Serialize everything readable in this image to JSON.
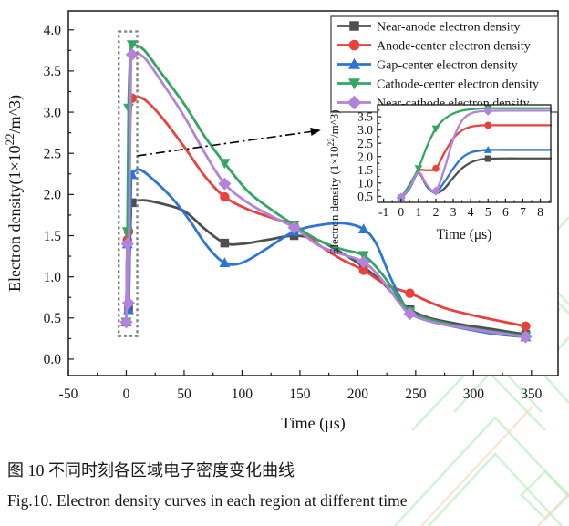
{
  "figure": {
    "caption_zh": "图 10 不同时刻各区域电子密度变化曲线",
    "caption_en": "Fig.10. Electron density curves in each region at different time"
  },
  "colors": {
    "axis": "#1a1a1a",
    "near_anode": "#4f4f4f",
    "anode_center": "#e9423e",
    "gap_center": "#2a74da",
    "cathode_center": "#34a663",
    "near_cathode": "#b283da",
    "dashed_box": "#808080",
    "arrow": "#000000",
    "legend_border": "#3a3a3a",
    "watermark_green": "#bdeec4",
    "watermark_peach": "#f6d9c4"
  },
  "chart_data": [
    {
      "id": "main",
      "type": "line",
      "xlabel": "Time (μs)",
      "ylabel_parts": [
        "Electron density(1×10",
        "22",
        "/m^3)"
      ],
      "xlim": [
        -50,
        373
      ],
      "ylim": [
        -0.2,
        4.23
      ],
      "xticks": [
        -50,
        0,
        50,
        100,
        150,
        200,
        250,
        300,
        350
      ],
      "xminor_step": 25,
      "yticks": [
        0.0,
        0.5,
        1.0,
        1.5,
        2.0,
        2.5,
        3.0,
        3.5,
        4.0
      ],
      "yminor_step": 0.25,
      "x_tick_decimals": 0,
      "y_tick_decimals": 1,
      "grid": false,
      "legend_position": "top-right",
      "series": [
        {
          "key": "near_anode",
          "label": "Near-anode electron density",
          "marker": "square",
          "color_key": "near_anode",
          "marker_ts": [
            0,
            1,
            2,
            5,
            85,
            145,
            205,
            245,
            345
          ],
          "points": [
            [
              0,
              0.45
            ],
            [
              1,
              1.4
            ],
            [
              2,
              0.62
            ],
            [
              3,
              1.3
            ],
            [
              4,
              1.75
            ],
            [
              5,
              1.9
            ],
            [
              15,
              1.93
            ],
            [
              30,
              1.89
            ],
            [
              50,
              1.8
            ],
            [
              68,
              1.58
            ],
            [
              85,
              1.41
            ],
            [
              100,
              1.4
            ],
            [
              122,
              1.45
            ],
            [
              145,
              1.5
            ],
            [
              165,
              1.45
            ],
            [
              185,
              1.3
            ],
            [
              205,
              1.12
            ],
            [
              222,
              0.92
            ],
            [
              235,
              0.72
            ],
            [
              245,
              0.6
            ],
            [
              262,
              0.5
            ],
            [
              290,
              0.42
            ],
            [
              318,
              0.36
            ],
            [
              345,
              0.3
            ]
          ]
        },
        {
          "key": "anode_center",
          "label": "Anode-center electron density",
          "marker": "circle",
          "color_key": "anode_center",
          "marker_ts": [
            0,
            1,
            2,
            5,
            85,
            145,
            205,
            245,
            345
          ],
          "points": [
            [
              0,
              0.45
            ],
            [
              1,
              1.45
            ],
            [
              2,
              1.55
            ],
            [
              3,
              2.6
            ],
            [
              4,
              3.05
            ],
            [
              5,
              3.17
            ],
            [
              15,
              3.16
            ],
            [
              30,
              2.95
            ],
            [
              50,
              2.58
            ],
            [
              68,
              2.22
            ],
            [
              85,
              1.97
            ],
            [
              105,
              1.82
            ],
            [
              125,
              1.72
            ],
            [
              145,
              1.62
            ],
            [
              165,
              1.4
            ],
            [
              185,
              1.22
            ],
            [
              205,
              1.08
            ],
            [
              225,
              0.9
            ],
            [
              245,
              0.8
            ],
            [
              275,
              0.62
            ],
            [
              310,
              0.5
            ],
            [
              345,
              0.4
            ]
          ]
        },
        {
          "key": "gap_center",
          "label": "Gap-center electron density",
          "marker": "triangle-up",
          "color_key": "gap_center",
          "marker_ts": [
            0,
            1,
            2,
            5,
            85,
            145,
            205,
            245,
            345
          ],
          "points": [
            [
              0,
              0.45
            ],
            [
              1,
              1.4
            ],
            [
              2,
              0.6
            ],
            [
              3,
              1.35
            ],
            [
              4,
              2.05
            ],
            [
              5,
              2.24
            ],
            [
              12,
              2.3
            ],
            [
              25,
              2.16
            ],
            [
              40,
              1.95
            ],
            [
              55,
              1.68
            ],
            [
              70,
              1.37
            ],
            [
              85,
              1.17
            ],
            [
              100,
              1.17
            ],
            [
              120,
              1.33
            ],
            [
              145,
              1.55
            ],
            [
              168,
              1.63
            ],
            [
              188,
              1.65
            ],
            [
              205,
              1.58
            ],
            [
              216,
              1.4
            ],
            [
              228,
              1.0
            ],
            [
              240,
              0.66
            ],
            [
              248,
              0.54
            ],
            [
              265,
              0.45
            ],
            [
              300,
              0.35
            ],
            [
              322,
              0.3
            ],
            [
              345,
              0.27
            ]
          ]
        },
        {
          "key": "cathode_center",
          "label": "Cathode-center electron density",
          "marker": "triangle-down",
          "color_key": "cathode_center",
          "marker_ts": [
            0,
            1,
            2,
            5,
            85,
            145,
            205,
            245,
            345
          ],
          "points": [
            [
              0,
              0.45
            ],
            [
              1,
              1.55
            ],
            [
              2,
              3.05
            ],
            [
              3,
              3.55
            ],
            [
              4,
              3.78
            ],
            [
              5,
              3.82
            ],
            [
              15,
              3.76
            ],
            [
              30,
              3.48
            ],
            [
              50,
              3.1
            ],
            [
              68,
              2.7
            ],
            [
              85,
              2.38
            ],
            [
              105,
              2.04
            ],
            [
              125,
              1.82
            ],
            [
              145,
              1.63
            ],
            [
              165,
              1.45
            ],
            [
              185,
              1.34
            ],
            [
              205,
              1.26
            ],
            [
              220,
              1.05
            ],
            [
              235,
              0.76
            ],
            [
              245,
              0.58
            ],
            [
              265,
              0.47
            ],
            [
              300,
              0.37
            ],
            [
              345,
              0.28
            ]
          ]
        },
        {
          "key": "near_cathode",
          "label": "Near-cathode electron density",
          "marker": "diamond",
          "color_key": "near_cathode",
          "marker_ts": [
            0,
            1,
            2,
            5,
            85,
            145,
            205,
            245,
            345
          ],
          "points": [
            [
              0,
              0.45
            ],
            [
              1,
              1.4
            ],
            [
              2,
              0.68
            ],
            [
              3,
              2.2
            ],
            [
              4,
              3.5
            ],
            [
              5,
              3.7
            ],
            [
              15,
              3.67
            ],
            [
              30,
              3.38
            ],
            [
              50,
              2.95
            ],
            [
              68,
              2.5
            ],
            [
              85,
              2.13
            ],
            [
              105,
              1.9
            ],
            [
              125,
              1.74
            ],
            [
              145,
              1.6
            ],
            [
              165,
              1.39
            ],
            [
              185,
              1.28
            ],
            [
              205,
              1.18
            ],
            [
              220,
              0.98
            ],
            [
              235,
              0.7
            ],
            [
              245,
              0.55
            ],
            [
              265,
              0.45
            ],
            [
              300,
              0.36
            ],
            [
              345,
              0.27
            ]
          ]
        }
      ],
      "annotations": {
        "dashed_box": {
          "x0": -6.5,
          "x1": 9.5,
          "y0": 0.28,
          "y1": 3.98
        },
        "arrow": {
          "x0": 9.5,
          "y0": 2.47,
          "x1": 168,
          "y1": 2.78
        }
      }
    },
    {
      "id": "inset",
      "type": "line",
      "xlabel": "Time (μs)",
      "ylabel_parts": [
        "Electron density (1×10",
        "22",
        "/m^3)"
      ],
      "xlim": [
        -1.35,
        8.6
      ],
      "ylim": [
        0.27,
        3.95
      ],
      "xticks": [
        -1,
        0,
        1,
        2,
        3,
        4,
        5,
        6,
        7,
        8
      ],
      "xminor_step": 0.5,
      "yticks": [
        0.5,
        1.0,
        1.5,
        2.0,
        2.5,
        3.0,
        3.5
      ],
      "yminor_step": 0.25,
      "x_tick_decimals": 0,
      "y_tick_decimals": 1,
      "grid": false,
      "legend_position": "none",
      "series": [
        {
          "key": "near_anode",
          "label": "Near-anode electron density",
          "marker": "square",
          "color_key": "near_anode",
          "marker_ts": [
            0,
            5
          ],
          "points": [
            [
              0,
              0.43
            ],
            [
              0.5,
              0.8
            ],
            [
              1,
              1.38
            ],
            [
              1.5,
              0.85
            ],
            [
              2,
              0.62
            ],
            [
              2.5,
              0.8
            ],
            [
              3,
              1.2
            ],
            [
              3.5,
              1.55
            ],
            [
              4,
              1.77
            ],
            [
              4.5,
              1.88
            ],
            [
              5,
              1.92
            ],
            [
              6,
              1.93
            ],
            [
              7,
              1.93
            ],
            [
              8,
              1.93
            ],
            [
              8.6,
              1.93
            ]
          ]
        },
        {
          "key": "anode_center",
          "label": "Anode-center electron density",
          "marker": "circle",
          "color_key": "anode_center",
          "marker_ts": [
            0,
            2,
            5
          ],
          "points": [
            [
              0,
              0.44
            ],
            [
              0.5,
              0.85
            ],
            [
              1,
              1.45
            ],
            [
              1.5,
              1.48
            ],
            [
              2,
              1.55
            ],
            [
              2.5,
              2.15
            ],
            [
              3,
              2.68
            ],
            [
              3.5,
              2.98
            ],
            [
              4,
              3.12
            ],
            [
              4.5,
              3.17
            ],
            [
              5,
              3.18
            ],
            [
              6,
              3.18
            ],
            [
              7,
              3.18
            ],
            [
              8,
              3.18
            ],
            [
              8.6,
              3.18
            ]
          ]
        },
        {
          "key": "gap_center",
          "label": "Gap-center electron density",
          "marker": "triangle-up",
          "color_key": "gap_center",
          "marker_ts": [
            0,
            5
          ],
          "points": [
            [
              0,
              0.43
            ],
            [
              0.5,
              0.8
            ],
            [
              1,
              1.4
            ],
            [
              1.5,
              0.88
            ],
            [
              2,
              0.65
            ],
            [
              2.5,
              1.05
            ],
            [
              3,
              1.55
            ],
            [
              3.5,
              1.95
            ],
            [
              4,
              2.15
            ],
            [
              4.5,
              2.22
            ],
            [
              5,
              2.25
            ],
            [
              6,
              2.25
            ],
            [
              7,
              2.25
            ],
            [
              8,
              2.25
            ],
            [
              8.6,
              2.25
            ]
          ]
        },
        {
          "key": "cathode_center",
          "label": "Cathode-center electron density",
          "marker": "triangle-down",
          "color_key": "cathode_center",
          "marker_ts": [
            0,
            1,
            2,
            5
          ],
          "points": [
            [
              0,
              0.45
            ],
            [
              0.5,
              0.95
            ],
            [
              1,
              1.55
            ],
            [
              1.5,
              2.4
            ],
            [
              2,
              3.05
            ],
            [
              2.5,
              3.42
            ],
            [
              3,
              3.62
            ],
            [
              3.5,
              3.73
            ],
            [
              4,
              3.78
            ],
            [
              4.5,
              3.81
            ],
            [
              5,
              3.82
            ],
            [
              6,
              3.82
            ],
            [
              7,
              3.82
            ],
            [
              8,
              3.82
            ],
            [
              8.6,
              3.82
            ]
          ]
        },
        {
          "key": "near_cathode",
          "label": "Near-cathode electron density",
          "marker": "diamond",
          "color_key": "near_cathode",
          "marker_ts": [
            0,
            2,
            5
          ],
          "points": [
            [
              0,
              0.45
            ],
            [
              0.5,
              0.82
            ],
            [
              1,
              1.4
            ],
            [
              1.5,
              0.92
            ],
            [
              2,
              0.7
            ],
            [
              2.5,
              1.55
            ],
            [
              3,
              2.65
            ],
            [
              3.5,
              3.35
            ],
            [
              4,
              3.62
            ],
            [
              4.5,
              3.7
            ],
            [
              5,
              3.72
            ],
            [
              6,
              3.73
            ],
            [
              7,
              3.73
            ],
            [
              8,
              3.73
            ],
            [
              8.6,
              3.73
            ]
          ]
        }
      ]
    }
  ]
}
